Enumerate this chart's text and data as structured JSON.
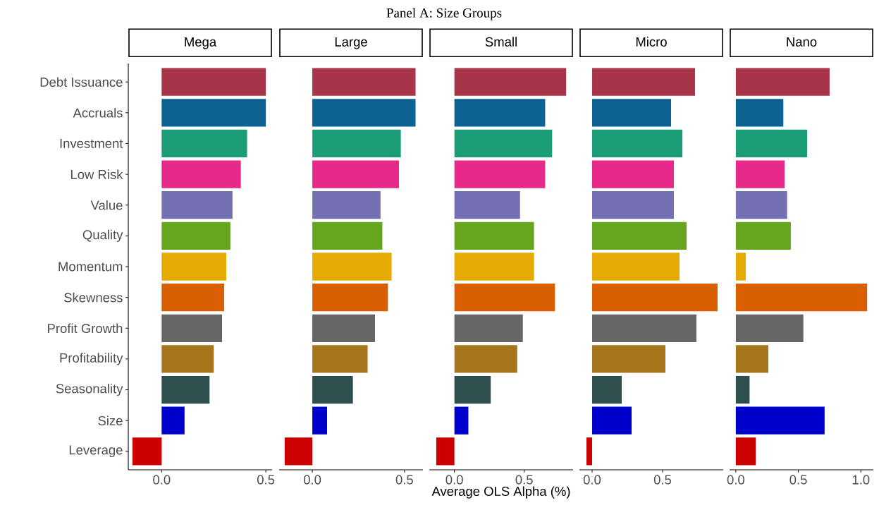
{
  "chart_data": [
    {
      "type": "bar",
      "orientation": "horizontal",
      "subtitle": "Mega",
      "categories": [
        "Debt Issuance",
        "Accruals",
        "Investment",
        "Low Risk",
        "Value",
        "Quality",
        "Momentum",
        "Skewness",
        "Profit Growth",
        "Profitability",
        "Seasonality",
        "Size",
        "Leverage"
      ],
      "values": [
        0.5,
        0.5,
        0.41,
        0.38,
        0.34,
        0.33,
        0.31,
        0.3,
        0.29,
        0.25,
        0.23,
        0.11,
        -0.14
      ],
      "colors": [
        "#a8344a",
        "#0e6291",
        "#1b9e77",
        "#e7298a",
        "#7570b3",
        "#66a61e",
        "#e6ab02",
        "#d95f02",
        "#666666",
        "#a6761d",
        "#2f4f4f",
        "#0000cd",
        "#cd0000"
      ],
      "xlim": [
        -0.16,
        0.53
      ],
      "xticks": [
        {
          "value": 0,
          "label": "0.0"
        },
        {
          "value": 0.5,
          "label": "0.5"
        }
      ]
    },
    {
      "type": "bar",
      "orientation": "horizontal",
      "subtitle": "Large",
      "tick_labels": "x",
      "categories": [
        null,
        null,
        null,
        null,
        null,
        null,
        null,
        null,
        null,
        null,
        null,
        null,
        null
      ],
      "values": [
        0.56,
        0.56,
        0.48,
        0.47,
        0.37,
        0.38,
        0.43,
        0.41,
        0.34,
        0.3,
        0.22,
        0.08,
        -0.15
      ],
      "colors": [
        "#a8344a",
        "#0e6291",
        "#1b9e77",
        "#e7298a",
        "#7570b3",
        "#66a61e",
        "#e6ab02",
        "#d95f02",
        "#666666",
        "#a6761d",
        "#2f4f4f",
        "#0000cd",
        "#cd0000"
      ],
      "xlim": [
        -0.18,
        0.6
      ],
      "xticks": [
        {
          "value": 0,
          "label": "0.0"
        },
        {
          "value": 0.5,
          "label": "0.5"
        }
      ]
    },
    {
      "type": "bar",
      "orientation": "horizontal",
      "title": "Panel A: Size Groups",
      "subtitle": "Small",
      "xlabel": "Average OLS Alpha (%)",
      "tick_labels": "x",
      "categories": [
        null,
        null,
        null,
        null,
        null,
        null,
        null,
        null,
        null,
        null,
        null,
        null,
        null
      ],
      "values": [
        0.8,
        0.65,
        0.7,
        0.65,
        0.47,
        0.57,
        0.57,
        0.72,
        0.49,
        0.45,
        0.26,
        0.1,
        -0.13
      ],
      "colors": [
        "#a8344a",
        "#0e6291",
        "#1b9e77",
        "#e7298a",
        "#7570b3",
        "#66a61e",
        "#e6ab02",
        "#d95f02",
        "#666666",
        "#a6761d",
        "#2f4f4f",
        "#0000cd",
        "#cd0000"
      ],
      "xlim": [
        -0.18,
        0.85
      ],
      "xticks": [
        {
          "value": 0,
          "label": "0.0"
        },
        {
          "value": 0.5,
          "label": "0.5"
        }
      ]
    },
    {
      "type": "bar",
      "orientation": "horizontal",
      "subtitle": "Micro",
      "tick_labels": "x",
      "categories": [
        null,
        null,
        null,
        null,
        null,
        null,
        null,
        null,
        null,
        null,
        null,
        null,
        null
      ],
      "values": [
        0.73,
        0.56,
        0.64,
        0.58,
        0.58,
        0.67,
        0.62,
        0.89,
        0.74,
        0.52,
        0.21,
        0.28,
        -0.04
      ],
      "colors": [
        "#a8344a",
        "#0e6291",
        "#1b9e77",
        "#e7298a",
        "#7570b3",
        "#66a61e",
        "#e6ab02",
        "#d95f02",
        "#666666",
        "#a6761d",
        "#2f4f4f",
        "#0000cd",
        "#cd0000"
      ],
      "xlim": [
        -0.09,
        0.93
      ],
      "xticks": [
        {
          "value": 0,
          "label": "0.0"
        },
        {
          "value": 0.5,
          "label": "0.5"
        }
      ]
    },
    {
      "type": "bar",
      "orientation": "horizontal",
      "subtitle": "Nano",
      "tick_labels": "x",
      "categories": [
        null,
        null,
        null,
        null,
        null,
        null,
        null,
        null,
        null,
        null,
        null,
        null,
        null
      ],
      "values": [
        0.75,
        0.38,
        0.57,
        0.39,
        0.41,
        0.44,
        0.08,
        1.05,
        0.54,
        0.26,
        0.11,
        0.71,
        0.16
      ],
      "colors": [
        "#a8344a",
        "#0e6291",
        "#1b9e77",
        "#e7298a",
        "#7570b3",
        "#66a61e",
        "#e6ab02",
        "#d95f02",
        "#666666",
        "#a6761d",
        "#2f4f4f",
        "#0000cd",
        "#cd0000"
      ],
      "xlim": [
        -0.05,
        1.1
      ],
      "xticks": [
        {
          "value": 0,
          "label": "0.0"
        },
        {
          "value": 0.5,
          "label": "0.5"
        },
        {
          "value": 1,
          "label": "1.0"
        }
      ]
    }
  ]
}
